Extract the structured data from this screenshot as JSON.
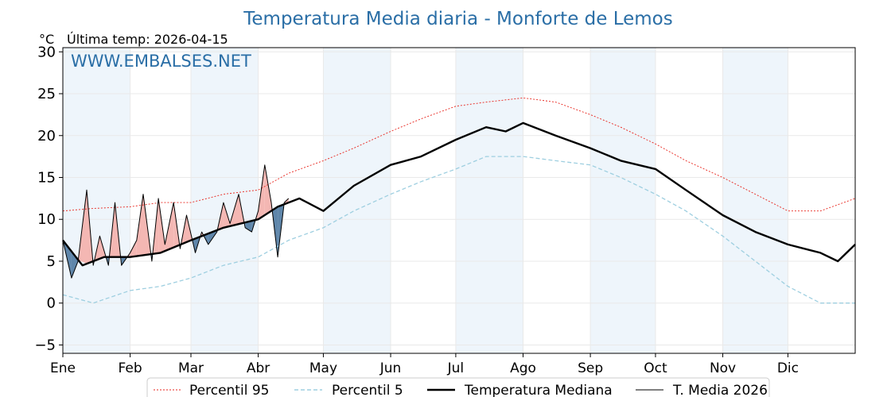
{
  "chart_data": {
    "type": "line",
    "title": "Temperatura Media diaria - Monforte de Lemos",
    "unit_label": "°C",
    "last_temp_label": "Última temp: 2026-04-15",
    "watermark": "WWW.EMBALSES.NET",
    "ylim": [
      -6,
      30.5
    ],
    "yticks": [
      -5,
      0,
      5,
      10,
      15,
      20,
      25,
      30
    ],
    "months": [
      "Ene",
      "Feb",
      "Mar",
      "Abr",
      "May",
      "Jun",
      "Jul",
      "Ago",
      "Sep",
      "Oct",
      "Nov",
      "Dic"
    ],
    "month_start_days": [
      1,
      32,
      60,
      91,
      121,
      152,
      182,
      213,
      244,
      274,
      305,
      335
    ],
    "x_range_days": [
      1,
      366
    ],
    "grid": true,
    "legend_position": "bottom",
    "colors": {
      "p95": "#e8241c",
      "p5": "#9ecfe0",
      "median": "#000000",
      "current": "#000000",
      "above_fill": "#f4b7b3",
      "below_fill": "#5f86aa",
      "shade": "#eef5fb",
      "title": "#2a6ea6"
    },
    "series": [
      {
        "name": "Percentil 95",
        "key": "p95",
        "x": [
          1,
          15,
          32,
          46,
          60,
          75,
          91,
          105,
          121,
          135,
          152,
          166,
          182,
          196,
          213,
          228,
          244,
          258,
          274,
          288,
          305,
          320,
          335,
          350,
          366
        ],
        "y": [
          11,
          11.3,
          11.5,
          12,
          12,
          13,
          13.5,
          15.5,
          17,
          18.5,
          20.5,
          22,
          23.5,
          24,
          24.5,
          24,
          22.5,
          21,
          19,
          17,
          15,
          13,
          11,
          11,
          12.5
        ]
      },
      {
        "name": "Percentil 5",
        "key": "p5",
        "x": [
          1,
          15,
          32,
          46,
          60,
          75,
          91,
          105,
          121,
          135,
          152,
          166,
          182,
          196,
          213,
          228,
          244,
          258,
          274,
          288,
          305,
          320,
          335,
          350,
          366
        ],
        "y": [
          1,
          0,
          1.5,
          2,
          3,
          4.5,
          5.5,
          7.5,
          9,
          11,
          13,
          14.5,
          16,
          17.5,
          17.5,
          17,
          16.5,
          15,
          13,
          11,
          8,
          5,
          2,
          0,
          0
        ]
      },
      {
        "name": "Temperatura Mediana",
        "key": "median",
        "x": [
          1,
          10,
          20,
          32,
          46,
          60,
          75,
          91,
          100,
          110,
          121,
          135,
          152,
          166,
          182,
          196,
          205,
          213,
          228,
          244,
          258,
          274,
          288,
          305,
          320,
          335,
          350,
          358,
          366
        ],
        "y": [
          7.5,
          4.5,
          5.5,
          5.5,
          6,
          7.5,
          9,
          10,
          11.5,
          12.5,
          11,
          14,
          16.5,
          17.5,
          19.5,
          21,
          20.5,
          21.5,
          20,
          18.5,
          17,
          16,
          13.5,
          10.5,
          8.5,
          7,
          6,
          5,
          7
        ]
      },
      {
        "name": "T. Media 2026",
        "key": "current",
        "x": [
          1,
          5,
          8,
          12,
          15,
          18,
          22,
          25,
          28,
          32,
          35,
          38,
          42,
          45,
          48,
          52,
          55,
          58,
          62,
          65,
          68,
          72,
          75,
          78,
          82,
          85,
          88,
          91,
          94,
          97,
          100,
          103,
          105
        ],
        "y": [
          7.5,
          3,
          5,
          13.5,
          4.5,
          8,
          4.5,
          12,
          4.5,
          6,
          7.5,
          13,
          5,
          12.5,
          7,
          12,
          6.5,
          10.5,
          6,
          8.5,
          7,
          8.5,
          12,
          9.5,
          13,
          9,
          8.5,
          11,
          16.5,
          12,
          5.5,
          12,
          12.5
        ]
      }
    ]
  }
}
